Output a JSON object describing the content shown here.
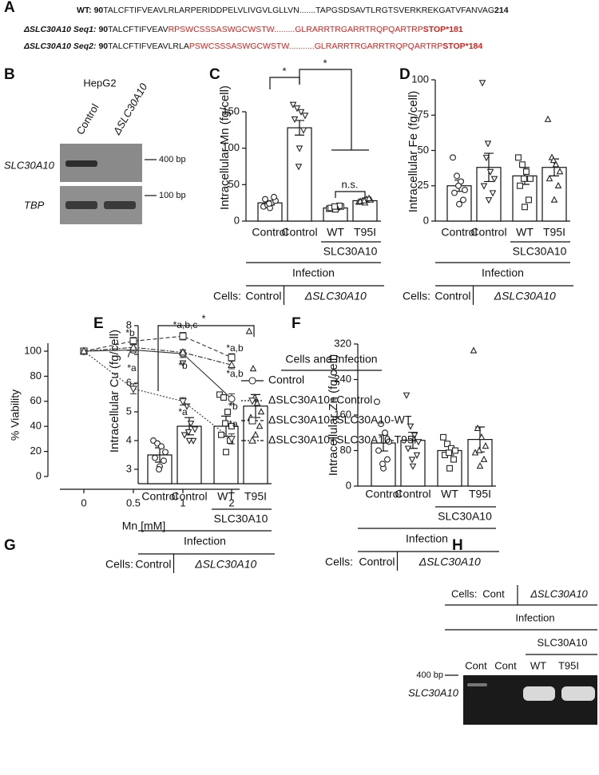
{
  "panel_labels": [
    "A",
    "B",
    "C",
    "D",
    "E",
    "F",
    "G",
    "H"
  ],
  "panel_a": {
    "lines": [
      {
        "label": "WT:",
        "start": "90",
        "seq": "TALCFTIFVEAVLRLARPERIDDPELVLIVGVLGLLVN.......TAPGSDSAVTLRGTSVERKREKGATVFANVAG",
        "end": "214"
      },
      {
        "label": "ΔSLC30A10 Seq1:",
        "start": "90",
        "seq": "TALCFTIFVEAV",
        "mutant": "RPSWCSSSASWGCWSTW.........GLRARRTRGARRTRQPQARTRP",
        "stop": "STOP*181"
      },
      {
        "label": "ΔSLC30A10 Seq2:",
        "start": "90",
        "seq": "TALCFTIFVEAVLRLA",
        "mutant": "PSWCSSSASWGCWSTW...........GLRARRTRGARRTRQPQARTRP",
        "stop": "STOP*184"
      }
    ]
  },
  "panel_b": {
    "title": "HepG2",
    "lanes": [
      "Control",
      "ΔSLC30A10"
    ],
    "rows": [
      "SLC30A10",
      "TBP"
    ],
    "markers": [
      "400 bp",
      "100 bp"
    ]
  },
  "panel_h": {
    "cells_label": "Cells:",
    "cells": [
      "Cont",
      "ΔSLC30A10"
    ],
    "infection": "Infection",
    "construct": "SLC30A10",
    "lanes": [
      "Cont",
      "Cont",
      "WT",
      "T95I"
    ],
    "marker": "400 bp",
    "row": "SLC30A10"
  },
  "chart_data": [
    {
      "type": "bar",
      "ylabel": "Intracellular Mn (fg/cell)",
      "categories": [
        "Control",
        "Control",
        "WT",
        "T95I"
      ],
      "values": [
        25,
        128,
        18,
        28
      ],
      "errors": [
        3,
        10,
        2,
        2
      ],
      "points": [
        [
          20,
          22,
          25,
          28,
          30,
          33,
          18,
          24
        ],
        [
          160,
          155,
          150,
          145,
          140,
          125,
          100,
          75
        ],
        [
          17,
          18,
          19,
          20,
          18,
          21,
          16,
          20
        ],
        [
          26,
          28,
          30,
          29,
          27,
          31,
          25,
          28
        ]
      ],
      "markers": [
        "circle",
        "triangle-down",
        "square",
        "triangle-up"
      ],
      "color": "#ffffff",
      "ylim": [
        0,
        150
      ],
      "yticks": [
        0,
        50,
        100,
        150
      ],
      "construct": "SLC30A10",
      "infection": "Infection",
      "cells_label": "Cells:",
      "cells": [
        "Control",
        "ΔSLC30A10"
      ],
      "annotations": [
        "*",
        "*",
        "n.s."
      ]
    },
    {
      "type": "bar",
      "ylabel": "Intracellular Fe (fg/cell)",
      "categories": [
        "Control",
        "Control",
        "WT",
        "T95I"
      ],
      "values": [
        25,
        38,
        32,
        38
      ],
      "errors": [
        4,
        10,
        6,
        6
      ],
      "points": [
        [
          45,
          32,
          28,
          22,
          20,
          15,
          12,
          25
        ],
        [
          98,
          45,
          35,
          30,
          25,
          20,
          15,
          55
        ],
        [
          45,
          40,
          35,
          30,
          25,
          15,
          10,
          30
        ],
        [
          72,
          45,
          40,
          35,
          30,
          25,
          15,
          43
        ]
      ],
      "markers": [
        "circle",
        "triangle-down",
        "square",
        "triangle-up"
      ],
      "color": "#ffffff",
      "ylim": [
        0,
        100
      ],
      "yticks": [
        0,
        25,
        50,
        75,
        100
      ],
      "construct": "SLC30A10",
      "infection": "Infection",
      "cells_label": "Cells:",
      "cells": [
        "Control",
        "ΔSLC30A10"
      ]
    },
    {
      "type": "bar",
      "ylabel": "Intracellular Cu (fg/cell)",
      "categories": [
        "Control",
        "Control",
        "WT",
        "T95I"
      ],
      "values": [
        3.5,
        4.5,
        4.5,
        5.2
      ],
      "errors": [
        0.25,
        0.3,
        0.35,
        0.4
      ],
      "points": [
        [
          4.0,
          3.9,
          3.8,
          3.6,
          3.4,
          3.3,
          3.1,
          3.0
        ],
        [
          6.7,
          5.2,
          4.6,
          4.4,
          4.2,
          4.0,
          4.0,
          4.3
        ],
        [
          5.6,
          5.5,
          5.0,
          4.5,
          4.2,
          4.0,
          3.6,
          4.6
        ],
        [
          7.8,
          6.5,
          5.3,
          5.0,
          4.8,
          4.5,
          4.2,
          5.5
        ]
      ],
      "markers": [
        "circle",
        "triangle-down",
        "square",
        "triangle-up"
      ],
      "color": "#ffffff",
      "ylim": [
        2.5,
        8
      ],
      "yticks": [
        3,
        4,
        5,
        6,
        7,
        8
      ],
      "construct": "SLC30A10",
      "infection": "Infection",
      "cells_label": "Cells:",
      "cells": [
        "Control",
        "ΔSLC30A10"
      ],
      "annotations": [
        "*"
      ]
    },
    {
      "type": "bar",
      "ylabel": "Intracellular Zn (fg/cell)",
      "categories": [
        "Control",
        "Control",
        "WT",
        "T95I"
      ],
      "values": [
        97,
        103,
        80,
        105
      ],
      "errors": [
        18,
        18,
        10,
        28
      ],
      "points": [
        [
          190,
          140,
          120,
          100,
          80,
          60,
          40,
          50
        ],
        [
          205,
          135,
          115,
          100,
          85,
          70,
          45,
          60
        ],
        [
          110,
          95,
          85,
          80,
          70,
          60,
          40,
          75
        ],
        [
          305,
          130,
          110,
          90,
          75,
          60,
          45,
          80
        ]
      ],
      "markers": [
        "circle",
        "triangle-down",
        "square",
        "triangle-up"
      ],
      "color": "#ffffff",
      "ylim": [
        0,
        320
      ],
      "yticks": [
        0,
        80,
        160,
        240,
        320
      ],
      "construct": "SLC30A10",
      "infection": "Infection",
      "cells_label": "Cells:",
      "cells": [
        "Control",
        "ΔSLC30A10"
      ]
    },
    {
      "type": "line",
      "xlabel": "Mn [mM]",
      "ylabel": "% Viability",
      "categories": [
        "0",
        "0.5",
        "1",
        "2"
      ],
      "ylim": [
        0,
        100
      ],
      "yticks": [
        0,
        20,
        40,
        60,
        80,
        100
      ],
      "legend_title": "Cells and Infection",
      "series": [
        {
          "name": "Control",
          "marker": "circle",
          "dash": "solid",
          "color": "#333333",
          "values": [
            100,
            101,
            98,
            62
          ],
          "errors": [
            1,
            2,
            3,
            4
          ]
        },
        {
          "name": "ΔSLC30A10+Control",
          "marker": "triangle-down",
          "dash": "dotted",
          "color": "#333333",
          "values": [
            100,
            70,
            60,
            30
          ],
          "errors": [
            1,
            4,
            3,
            4
          ]
        },
        {
          "name": "ΔSLC30A10+SLC30A10-WT",
          "marker": "square",
          "dash": "dashed",
          "color": "#333333",
          "values": [
            100,
            108,
            112,
            95
          ],
          "errors": [
            1,
            3,
            3,
            3
          ]
        },
        {
          "name": "ΔSLC30A10+SLC30A10-T95I",
          "marker": "triangle-up",
          "dash": "dashdot",
          "color": "#333333",
          "values": [
            100,
            103,
            99,
            89
          ],
          "errors": [
            1,
            3,
            2,
            3
          ]
        }
      ],
      "annotations": [
        "*b",
        "*a",
        "*a,b,c",
        "*b",
        "*a",
        "*a,b",
        "*a,b",
        "*b",
        "*a"
      ]
    }
  ]
}
